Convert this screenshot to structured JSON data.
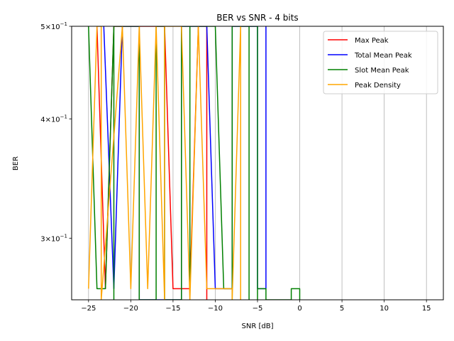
{
  "chart_data": {
    "type": "line",
    "title": "BER vs SNR - 4 bits",
    "xlabel": "SNR [dB]",
    "ylabel": "BER",
    "xlim": [
      -27,
      17
    ],
    "ylim": [
      0.2586,
      0.5
    ],
    "yscale": "log",
    "grid": "x-only",
    "legend_position": "top-right",
    "xticks": [
      -25,
      -20,
      -15,
      -10,
      -5,
      0,
      5,
      10,
      15
    ],
    "xtick_labels": [
      "−25",
      "−20",
      "−15",
      "−10",
      "−5",
      "0",
      "5",
      "10",
      "15"
    ],
    "yticks": [
      {
        "value": 0.5,
        "base": "5",
        "exp": "−1"
      },
      {
        "value": 0.4,
        "base": "4",
        "exp": "−1"
      },
      {
        "value": 0.3,
        "base": "3",
        "exp": "−1"
      }
    ],
    "series": [
      {
        "name": "Max Peak",
        "color": "#ff0000",
        "points": [
          [
            -24,
            0.5
          ],
          [
            -23,
            0.2656
          ],
          [
            -22,
            0.5
          ],
          [
            -16,
            0.5
          ],
          [
            -15,
            0.2656
          ],
          [
            -13,
            0.2656
          ],
          [
            -12,
            0.5
          ],
          [
            -11,
            0.5
          ],
          [
            -11,
            0.2586
          ]
        ]
      },
      {
        "name": "Total Mean Peak",
        "color": "#0000ff",
        "points": [
          [
            -23.2,
            0.5
          ],
          [
            -22,
            0.2656
          ],
          [
            -21,
            0.5
          ],
          [
            -19,
            0.5
          ],
          [
            -19,
            0.2586
          ],
          [
            -14,
            0.2586
          ],
          [
            -14,
            0.5
          ],
          [
            -11,
            0.5
          ],
          [
            -10,
            0.2656
          ],
          [
            -8,
            0.2656
          ],
          [
            -8,
            0.5
          ],
          [
            -5,
            0.5
          ],
          [
            -5,
            0.2656
          ],
          [
            -4,
            0.2656
          ],
          [
            -4,
            0.5
          ]
        ]
      },
      {
        "name": "Slot Mean Peak",
        "color": "#008000",
        "points": [
          [
            -25,
            0.5
          ],
          [
            -24,
            0.2656
          ],
          [
            -23,
            0.2656
          ],
          [
            -22,
            0.5
          ],
          [
            -22,
            0.2586
          ],
          [
            -22,
            0.5
          ],
          [
            -19,
            0.5
          ],
          [
            -19,
            0.2586
          ],
          [
            -17,
            0.2586
          ],
          [
            -17,
            0.5
          ],
          [
            -16,
            0.5
          ],
          [
            -16,
            0.2586
          ],
          [
            -14,
            0.2586
          ],
          [
            -14,
            0.5
          ],
          [
            -13,
            0.5
          ],
          [
            -13,
            0.2586
          ],
          [
            -13,
            0.5
          ],
          [
            -10,
            0.5
          ],
          [
            -9,
            0.2656
          ],
          [
            -8,
            0.2656
          ],
          [
            -8,
            0.2586
          ],
          [
            -8,
            0.5
          ],
          [
            -6,
            0.5
          ],
          [
            -6,
            0.2586
          ],
          [
            -6,
            0.5
          ],
          [
            -5,
            0.5
          ],
          [
            -5,
            0.2586
          ],
          [
            -5,
            0.2656
          ],
          [
            -4,
            0.2656
          ],
          [
            -4,
            0.2586
          ],
          [
            -1,
            0.2586
          ],
          [
            -1,
            0.2656
          ],
          [
            0,
            0.2656
          ],
          [
            0,
            0.2586
          ]
        ]
      },
      {
        "name": "Peak Density",
        "color": "#ffa500",
        "points": [
          [
            -25,
            0.2656
          ],
          [
            -24,
            0.5
          ],
          [
            -23.5,
            0.5
          ],
          [
            -23.5,
            0.2586
          ],
          [
            -21,
            0.5
          ],
          [
            -20,
            0.2656
          ],
          [
            -19,
            0.5
          ],
          [
            -18,
            0.2656
          ],
          [
            -17,
            0.5
          ],
          [
            -16,
            0.2586
          ],
          [
            -16,
            0.5
          ],
          [
            -14,
            0.5
          ],
          [
            -13,
            0.2586
          ],
          [
            -12,
            0.5
          ],
          [
            -11,
            0.2656
          ],
          [
            -8,
            0.2656
          ],
          [
            -8,
            0.2586
          ],
          [
            -7,
            0.5
          ],
          [
            -7,
            0.2586
          ]
        ]
      }
    ]
  }
}
